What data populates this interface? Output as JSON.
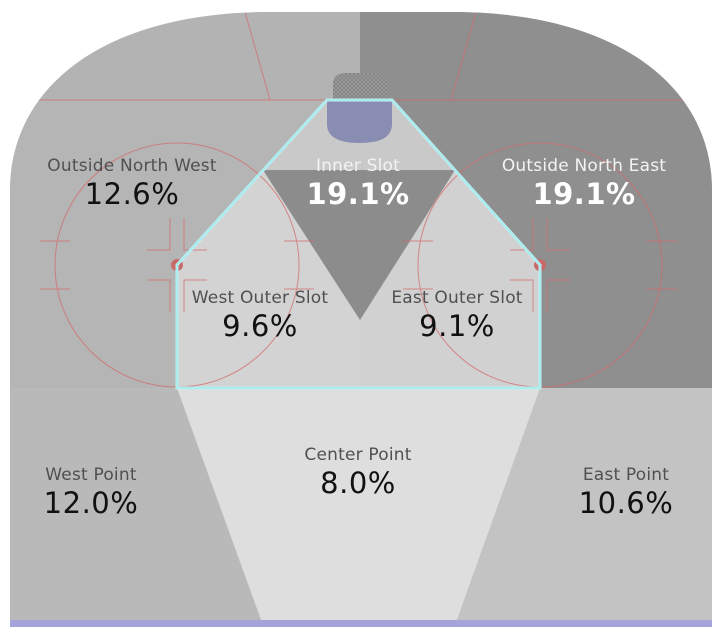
{
  "colors": {
    "hot_zone": "#8c8c8c",
    "mid_zone": "#b6b6b6",
    "light_zone": "#d2d2d2",
    "faint_zone": "#dedede",
    "highlight_outline": "#bff3f5",
    "goal_line": "#a4a3da",
    "rink_markings": "#d26b6b"
  },
  "zones": {
    "inner_slot": {
      "name": "Inner Slot",
      "value": "19.1%",
      "share": 19.1
    },
    "outside_north_west": {
      "name": "Outside North West",
      "value": "12.6%",
      "share": 12.6
    },
    "outside_north_east": {
      "name": "Outside North East",
      "value": "19.1%",
      "share": 19.1
    },
    "west_outer_slot": {
      "name": "West Outer Slot",
      "value": "9.6%",
      "share": 9.6
    },
    "east_outer_slot": {
      "name": "East Outer Slot",
      "value": "9.1%",
      "share": 9.1
    },
    "center_point": {
      "name": "Center Point",
      "value": "8.0%",
      "share": 8.0
    },
    "west_point": {
      "name": "West Point",
      "value": "12.0%",
      "share": 12.0
    },
    "east_point": {
      "name": "East Point",
      "value": "10.6%",
      "share": 10.6
    }
  }
}
